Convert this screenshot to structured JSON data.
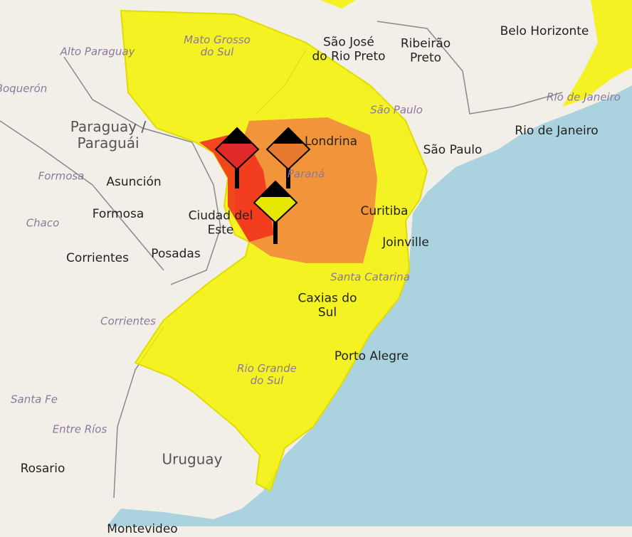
{
  "map": {
    "colors": {
      "land": "#f2efe9",
      "ocean": "#aad3df",
      "yellow_alert": "#f5f200",
      "orange_alert": "#f28a3c",
      "red_alert": "#f2331c",
      "borders": "#777777"
    },
    "labels": {
      "countries": [
        "Paraguay /\nParaguái",
        "Uruguay"
      ],
      "regions": [
        "Alto Paraguay",
        "Boquerón",
        "Mato Grosso\ndo Sul",
        "São Paulo",
        "Rio de Janeiro",
        "Paraná",
        "Santa Catarina",
        "Rio Grande\ndo Sul",
        "Formosa",
        "Chaco",
        "Corrientes",
        "Santa Fe",
        "Entre Ríos"
      ],
      "cities": [
        "São José\ndo Rio Preto",
        "Ribeirão\nPreto",
        "Belo Horizonte",
        "Rio de Janeiro",
        "São Paulo",
        "Londrina",
        "Asunción",
        "Formosa",
        "Ciudad del\nEste",
        "Posadas",
        "Corrientes",
        "Curitiba",
        "Joinville",
        "Caxias do\nSul",
        "Porto Alegre",
        "Rosario",
        "Montevideo"
      ]
    },
    "markers": [
      {
        "name": "red-alert-marker",
        "color": "#e02a2a"
      },
      {
        "name": "orange-alert-marker",
        "color": "#e87a30"
      },
      {
        "name": "yellow-alert-marker",
        "color": "#e6e600"
      }
    ]
  }
}
